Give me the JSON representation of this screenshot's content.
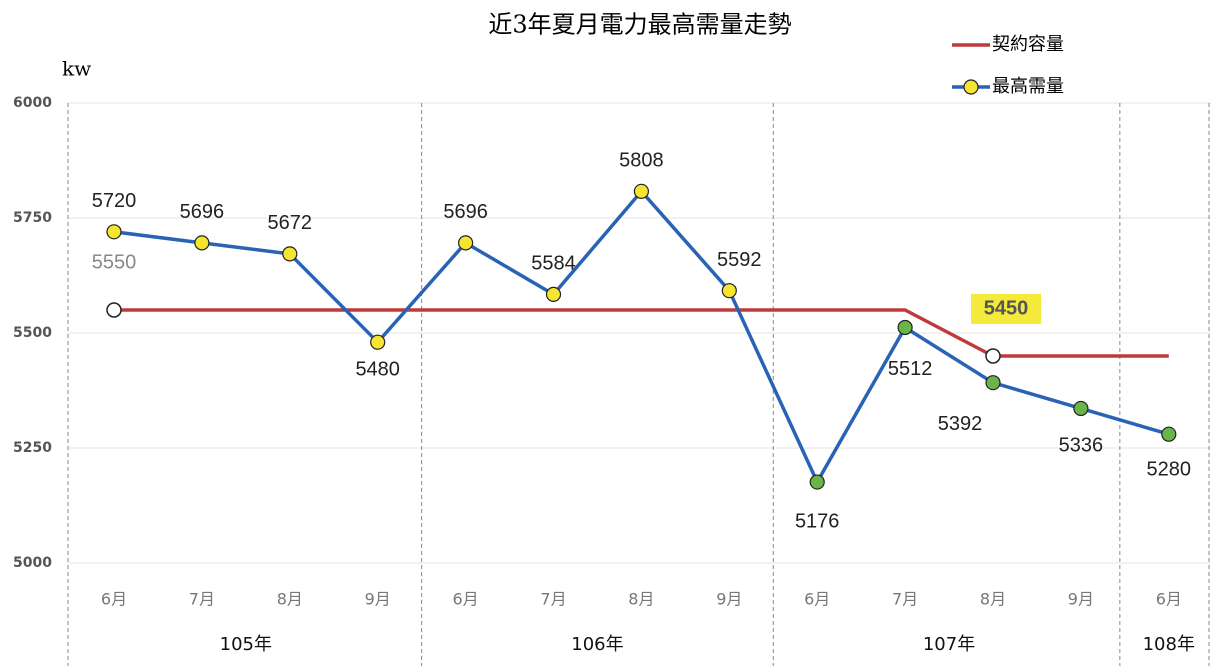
{
  "chart_data": {
    "type": "line",
    "title": "近3年夏月電力最高需量走勢",
    "y_label": "kw",
    "categories": [
      "6月",
      "7月",
      "8月",
      "9月",
      "6月",
      "7月",
      "8月",
      "9月",
      "6月",
      "7月",
      "8月",
      "9月",
      "6月"
    ],
    "groups": [
      {
        "label": "105年",
        "span": 4
      },
      {
        "label": "106年",
        "span": 4
      },
      {
        "label": "107年",
        "span": 4
      },
      {
        "label": "108年",
        "span": 1
      }
    ],
    "ylim": [
      5000,
      6000
    ],
    "yticks": [
      5000,
      5250,
      5500,
      5750,
      6000
    ],
    "grid": true,
    "series": [
      {
        "name": "契約容量",
        "color": "#c0393b",
        "values": [
          5550,
          5550,
          5550,
          5550,
          5550,
          5550,
          5550,
          5550,
          5550,
          5550,
          5450,
          5450,
          5450
        ],
        "value_labels": [
          "5550",
          null,
          null,
          null,
          null,
          null,
          null,
          null,
          null,
          null,
          "5450",
          null,
          null
        ]
      },
      {
        "name": "最高需量",
        "color": "#2a63b5",
        "values": [
          5720,
          5696,
          5672,
          5480,
          5696,
          5584,
          5808,
          5592,
          5176,
          5512,
          5392,
          5336,
          5280
        ],
        "marker_colors": [
          "#f5e430",
          "#f5e430",
          "#f5e430",
          "#f5e430",
          "#f5e430",
          "#f5e430",
          "#f5e430",
          "#f5e430",
          "#6ab54a",
          "#6ab54a",
          "#6ab54a",
          "#6ab54a",
          "#6ab54a"
        ]
      }
    ],
    "legend": "top-right"
  }
}
